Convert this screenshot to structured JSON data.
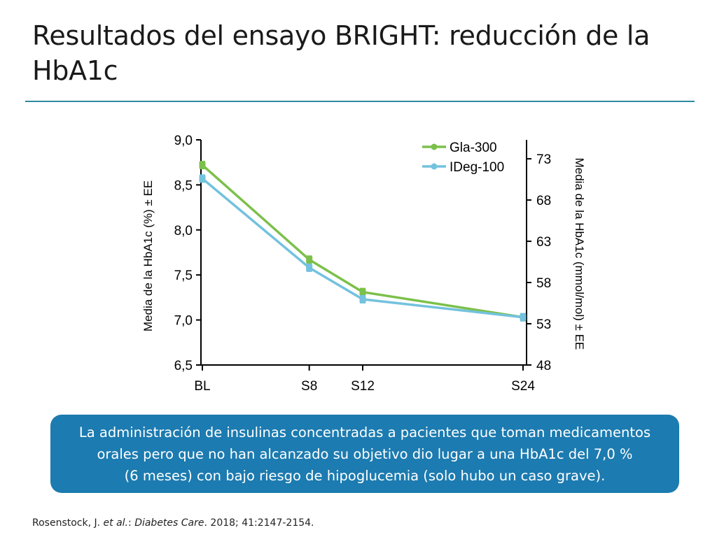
{
  "title": "Resultados del ensayo BRIGHT: reducción de la HbA1c",
  "callout": {
    "line1": "La administración de insulinas concentradas a pacientes que toman medicamentos",
    "line2": "orales pero que no han alcanzado su objetivo dio lugar a una HbA1c del 7,0 %",
    "line3": "(6 meses) con bajo riesgo de hipoglucemia (solo hubo un caso grave)."
  },
  "citation": {
    "authors": "Rosenstock, J. ",
    "etal": "et al.",
    "colon": ": ",
    "journal": "Diabetes Care",
    "details": ". 2018; 41:2147-2154."
  },
  "chart_data": {
    "type": "line",
    "title": "",
    "ylabel": "Media de la HbA1c (%) ± EE",
    "y2label": "Media de la HbA1c (mmol/mol) ± EE",
    "xlabel": "",
    "categories": [
      "BL",
      "S8",
      "S12",
      "S24"
    ],
    "x": [
      0,
      8,
      12,
      24
    ],
    "ylim": [
      6.5,
      9.0
    ],
    "yticks": [
      "6,5",
      "7,0",
      "7,5",
      "8,0",
      "8,5",
      "9,0"
    ],
    "ytick_values": [
      6.5,
      7.0,
      7.5,
      8.0,
      8.5,
      9.0
    ],
    "y2lim": [
      48,
      75.3
    ],
    "y2ticks": [
      "48",
      "53",
      "58",
      "63",
      "68",
      "73"
    ],
    "y2tick_values": [
      48,
      53,
      58,
      63,
      68,
      73
    ],
    "legend_position": "top-right",
    "series": [
      {
        "name": "Gla-300",
        "color": "#7cc04b",
        "values": [
          8.72,
          7.67,
          7.31,
          7.03
        ]
      },
      {
        "name": "IDeg-100",
        "color": "#73c2de",
        "values": [
          8.57,
          7.58,
          7.23,
          7.03
        ]
      }
    ]
  }
}
